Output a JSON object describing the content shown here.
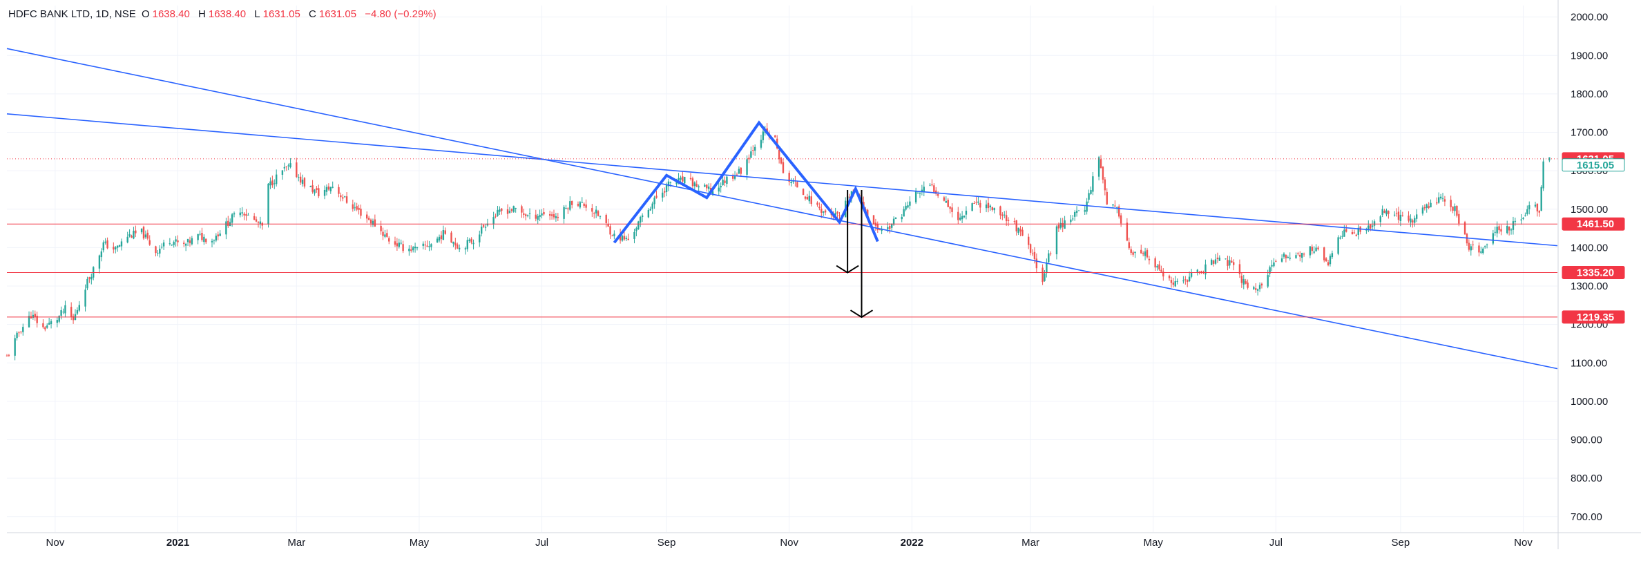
{
  "header": {
    "symbol": "HDFC BANK LTD, 1D, NSE",
    "o_label": "O",
    "o_value": "1638.40",
    "h_label": "H",
    "h_value": "1638.40",
    "l_label": "L",
    "l_value": "1631.05",
    "c_label": "C",
    "c_value": "1631.05",
    "change": "−4.80 (−0.29%)"
  },
  "colors": {
    "up": "#26a69a",
    "down": "#ef5350",
    "trendline": "#2962ff",
    "pattern": "#2962ff",
    "hline": "#f23645",
    "grid": "#f0f3fa",
    "axis_text": "#131722",
    "arrow": "#000000"
  },
  "chart_data": {
    "type": "candlestick",
    "title": "",
    "xlabel": "",
    "ylabel": "",
    "ylim": [
      660,
      2030
    ],
    "xlim": [
      "2020-10-08",
      "2022-11-18"
    ],
    "y_ticks": [
      "2000.00",
      "1900.00",
      "1800.00",
      "1700.00",
      "1600.00",
      "1500.00",
      "1400.00",
      "1300.00",
      "1200.00",
      "1100.00",
      "1000.00",
      "900.00",
      "800.00",
      "700.00"
    ],
    "x_ticks": [
      {
        "label": "Nov",
        "date": "2020-11-01",
        "bold": false
      },
      {
        "label": "2021",
        "date": "2021-01-01",
        "bold": true
      },
      {
        "label": "Mar",
        "date": "2021-03-01",
        "bold": false
      },
      {
        "label": "May",
        "date": "2021-05-01",
        "bold": false
      },
      {
        "label": "Jul",
        "date": "2021-07-01",
        "bold": false
      },
      {
        "label": "Sep",
        "date": "2021-09-01",
        "bold": false
      },
      {
        "label": "Nov",
        "date": "2021-11-01",
        "bold": false
      },
      {
        "label": "2022",
        "date": "2022-01-01",
        "bold": true
      },
      {
        "label": "Mar",
        "date": "2022-03-01",
        "bold": false
      },
      {
        "label": "May",
        "date": "2022-05-01",
        "bold": false
      },
      {
        "label": "Jul",
        "date": "2022-07-01",
        "bold": false
      },
      {
        "label": "Sep",
        "date": "2022-09-01",
        "bold": false
      },
      {
        "label": "Nov",
        "date": "2022-11-01",
        "bold": false
      }
    ],
    "grid": true,
    "close_series": [
      [
        "2020-10-08",
        1115
      ],
      [
        "2020-10-14",
        1180
      ],
      [
        "2020-10-20",
        1225
      ],
      [
        "2020-10-26",
        1190
      ],
      [
        "2020-11-02",
        1215
      ],
      [
        "2020-11-06",
        1240
      ],
      [
        "2020-11-10",
        1210
      ],
      [
        "2020-11-16",
        1300
      ],
      [
        "2020-11-20",
        1345
      ],
      [
        "2020-11-25",
        1410
      ],
      [
        "2020-12-01",
        1395
      ],
      [
        "2020-12-07",
        1430
      ],
      [
        "2020-12-14",
        1440
      ],
      [
        "2020-12-21",
        1390
      ],
      [
        "2020-12-28",
        1420
      ],
      [
        "2021-01-04",
        1405
      ],
      [
        "2021-01-11",
        1430
      ],
      [
        "2021-01-18",
        1420
      ],
      [
        "2021-01-25",
        1460
      ],
      [
        "2021-02-01",
        1500
      ],
      [
        "2021-02-08",
        1470
      ],
      [
        "2021-02-12",
        1455
      ],
      [
        "2021-02-15",
        1560
      ],
      [
        "2021-02-22",
        1600
      ],
      [
        "2021-02-26",
        1610
      ],
      [
        "2021-03-05",
        1565
      ],
      [
        "2021-03-12",
        1540
      ],
      [
        "2021-03-19",
        1560
      ],
      [
        "2021-03-26",
        1520
      ],
      [
        "2021-04-02",
        1490
      ],
      [
        "2021-04-09",
        1460
      ],
      [
        "2021-04-16",
        1420
      ],
      [
        "2021-04-23",
        1400
      ],
      [
        "2021-04-30",
        1395
      ],
      [
        "2021-05-07",
        1410
      ],
      [
        "2021-05-14",
        1440
      ],
      [
        "2021-05-21",
        1400
      ],
      [
        "2021-05-28",
        1420
      ],
      [
        "2021-06-04",
        1470
      ],
      [
        "2021-06-11",
        1495
      ],
      [
        "2021-06-18",
        1500
      ],
      [
        "2021-06-25",
        1480
      ],
      [
        "2021-07-02",
        1490
      ],
      [
        "2021-07-09",
        1480
      ],
      [
        "2021-07-16",
        1520
      ],
      [
        "2021-07-23",
        1510
      ],
      [
        "2021-07-30",
        1480
      ],
      [
        "2021-08-06",
        1430
      ],
      [
        "2021-08-13",
        1420
      ],
      [
        "2021-08-20",
        1480
      ],
      [
        "2021-08-27",
        1530
      ],
      [
        "2021-09-03",
        1570
      ],
      [
        "2021-09-10",
        1575
      ],
      [
        "2021-09-17",
        1560
      ],
      [
        "2021-09-24",
        1545
      ],
      [
        "2021-10-01",
        1580
      ],
      [
        "2021-10-08",
        1600
      ],
      [
        "2021-10-15",
        1670
      ],
      [
        "2021-10-20",
        1700
      ],
      [
        "2021-10-25",
        1680
      ],
      [
        "2021-10-29",
        1590
      ],
      [
        "2021-11-05",
        1560
      ],
      [
        "2021-11-12",
        1520
      ],
      [
        "2021-11-19",
        1490
      ],
      [
        "2021-11-26",
        1480
      ],
      [
        "2021-12-02",
        1545
      ],
      [
        "2021-12-08",
        1510
      ],
      [
        "2021-12-14",
        1450
      ],
      [
        "2021-12-20",
        1450
      ],
      [
        "2021-12-27",
        1490
      ],
      [
        "2022-01-03",
        1540
      ],
      [
        "2022-01-10",
        1560
      ],
      [
        "2022-01-17",
        1530
      ],
      [
        "2022-01-24",
        1470
      ],
      [
        "2022-01-31",
        1520
      ],
      [
        "2022-02-07",
        1510
      ],
      [
        "2022-02-14",
        1490
      ],
      [
        "2022-02-21",
        1460
      ],
      [
        "2022-02-28",
        1400
      ],
      [
        "2022-03-07",
        1320
      ],
      [
        "2022-03-14",
        1450
      ],
      [
        "2022-03-21",
        1480
      ],
      [
        "2022-03-28",
        1500
      ],
      [
        "2022-04-04",
        1640
      ],
      [
        "2022-04-08",
        1520
      ],
      [
        "2022-04-14",
        1490
      ],
      [
        "2022-04-20",
        1380
      ],
      [
        "2022-04-27",
        1380
      ],
      [
        "2022-05-04",
        1340
      ],
      [
        "2022-05-11",
        1300
      ],
      [
        "2022-05-18",
        1320
      ],
      [
        "2022-05-25",
        1340
      ],
      [
        "2022-06-01",
        1370
      ],
      [
        "2022-06-08",
        1360
      ],
      [
        "2022-06-15",
        1310
      ],
      [
        "2022-06-22",
        1290
      ],
      [
        "2022-06-29",
        1350
      ],
      [
        "2022-07-06",
        1380
      ],
      [
        "2022-07-13",
        1380
      ],
      [
        "2022-07-20",
        1400
      ],
      [
        "2022-07-27",
        1360
      ],
      [
        "2022-08-03",
        1440
      ],
      [
        "2022-08-10",
        1440
      ],
      [
        "2022-08-17",
        1450
      ],
      [
        "2022-08-24",
        1500
      ],
      [
        "2022-08-31",
        1480
      ],
      [
        "2022-09-07",
        1470
      ],
      [
        "2022-09-14",
        1510
      ],
      [
        "2022-09-21",
        1530
      ],
      [
        "2022-09-28",
        1500
      ],
      [
        "2022-10-05",
        1400
      ],
      [
        "2022-10-12",
        1390
      ],
      [
        "2022-10-19",
        1450
      ],
      [
        "2022-10-26",
        1455
      ],
      [
        "2022-11-01",
        1480
      ],
      [
        "2022-11-04",
        1510
      ],
      [
        "2022-11-09",
        1500
      ],
      [
        "2022-11-11",
        1615
      ],
      [
        "2022-11-14",
        1631.05
      ]
    ],
    "current_price_label": "1631.05",
    "secondary_price_label": "1615.05",
    "current_price": 1631.05,
    "secondary_price": 1615.05,
    "horizontal_levels": [
      {
        "value": 1461.5,
        "label": "1461.50"
      },
      {
        "value": 1335.2,
        "label": "1335.20"
      },
      {
        "value": 1219.35,
        "label": "1219.35"
      }
    ],
    "trendlines": [
      {
        "from": [
          "2020-10-08",
          1918
        ],
        "to": [
          "2022-11-18",
          1085
        ]
      },
      {
        "from": [
          "2020-10-08",
          1748
        ],
        "to": [
          "2022-11-18",
          1405
        ]
      }
    ],
    "pattern_path": [
      [
        "2021-08-06",
        1413
      ],
      [
        "2021-09-01",
        1588
      ],
      [
        "2021-09-21",
        1530
      ],
      [
        "2021-10-17",
        1725
      ],
      [
        "2021-11-26",
        1466
      ],
      [
        "2021-12-04",
        1553
      ],
      [
        "2021-12-15",
        1416
      ]
    ],
    "arrows": [
      {
        "date": "2021-11-30",
        "from": 1550,
        "to": 1335
      },
      {
        "date": "2021-12-07",
        "from": 1550,
        "to": 1219
      }
    ]
  }
}
